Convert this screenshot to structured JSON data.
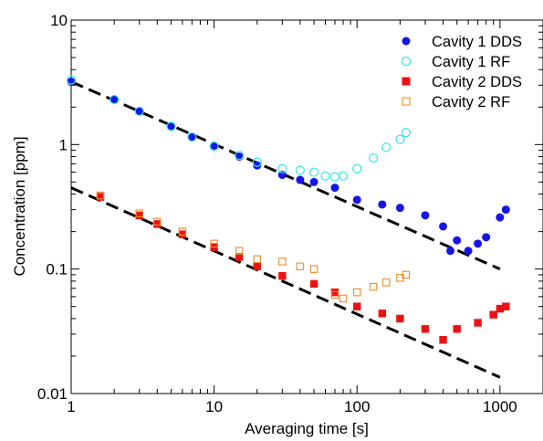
{
  "chart_data": {
    "type": "scatter",
    "title": "",
    "xlabel": "Averaging time [s]",
    "ylabel": "Concentration [ppm]",
    "xscale": "log",
    "yscale": "log",
    "xlim": [
      1,
      2000
    ],
    "ylim": [
      0.01,
      10
    ],
    "x_ticks": [
      1,
      10,
      100,
      1000
    ],
    "x_tick_labels": [
      "1",
      "10",
      "100",
      "1000"
    ],
    "y_ticks": [
      0.01,
      0.1,
      1,
      10
    ],
    "y_tick_labels": [
      "0.01",
      "0.1",
      "1",
      "10"
    ],
    "grid": false,
    "legend_position": "top-right",
    "series": [
      {
        "name": "Cavity 1 DDS",
        "marker": "filled-circle",
        "color": "#1515e6",
        "points": [
          [
            1,
            3.2
          ],
          [
            2,
            2.3
          ],
          [
            3,
            1.85
          ],
          [
            5,
            1.4
          ],
          [
            7,
            1.15
          ],
          [
            10,
            0.98
          ],
          [
            15,
            0.8
          ],
          [
            20,
            0.68
          ],
          [
            30,
            0.57
          ],
          [
            40,
            0.52
          ],
          [
            50,
            0.5
          ],
          [
            70,
            0.45
          ],
          [
            100,
            0.36
          ],
          [
            150,
            0.33
          ],
          [
            200,
            0.31
          ],
          [
            300,
            0.27
          ],
          [
            400,
            0.22
          ],
          [
            450,
            0.14
          ],
          [
            500,
            0.17
          ],
          [
            600,
            0.14
          ],
          [
            700,
            0.16
          ],
          [
            800,
            0.18
          ],
          [
            1000,
            0.26
          ],
          [
            1100,
            0.3
          ]
        ]
      },
      {
        "name": "Cavity 1 RF",
        "marker": "open-circle",
        "color": "#33e6e6",
        "points": [
          [
            1,
            3.3
          ],
          [
            2,
            2.3
          ],
          [
            3,
            1.85
          ],
          [
            5,
            1.4
          ],
          [
            7,
            1.15
          ],
          [
            10,
            0.97
          ],
          [
            15,
            0.82
          ],
          [
            20,
            0.72
          ],
          [
            30,
            0.64
          ],
          [
            40,
            0.62
          ],
          [
            50,
            0.6
          ],
          [
            60,
            0.56
          ],
          [
            70,
            0.55
          ],
          [
            80,
            0.56
          ],
          [
            100,
            0.64
          ],
          [
            130,
            0.78
          ],
          [
            160,
            0.95
          ],
          [
            200,
            1.1
          ],
          [
            220,
            1.25
          ]
        ]
      },
      {
        "name": "Cavity 2 DDS",
        "marker": "filled-square",
        "color": "#ee1111",
        "points": [
          [
            1.6,
            0.38
          ],
          [
            3,
            0.27
          ],
          [
            4,
            0.23
          ],
          [
            6,
            0.19
          ],
          [
            10,
            0.15
          ],
          [
            15,
            0.125
          ],
          [
            20,
            0.105
          ],
          [
            30,
            0.088
          ],
          [
            50,
            0.076
          ],
          [
            70,
            0.065
          ],
          [
            100,
            0.05
          ],
          [
            150,
            0.044
          ],
          [
            200,
            0.04
          ],
          [
            300,
            0.033
          ],
          [
            400,
            0.027
          ],
          [
            500,
            0.033
          ],
          [
            700,
            0.037
          ],
          [
            900,
            0.043
          ],
          [
            1000,
            0.048
          ],
          [
            1100,
            0.05
          ]
        ]
      },
      {
        "name": "Cavity 2 RF",
        "marker": "open-square",
        "color": "#f08a2a",
        "points": [
          [
            1.6,
            0.39
          ],
          [
            3,
            0.28
          ],
          [
            4,
            0.24
          ],
          [
            6,
            0.2
          ],
          [
            10,
            0.16
          ],
          [
            15,
            0.14
          ],
          [
            20,
            0.12
          ],
          [
            30,
            0.115
          ],
          [
            40,
            0.105
          ],
          [
            50,
            0.1
          ],
          [
            70,
            0.062
          ],
          [
            80,
            0.058
          ],
          [
            100,
            0.065
          ],
          [
            130,
            0.072
          ],
          [
            160,
            0.078
          ],
          [
            200,
            0.085
          ],
          [
            220,
            0.09
          ]
        ]
      }
    ],
    "fit_lines": [
      {
        "color": "#000000",
        "style": "dashed",
        "x": [
          1,
          1000
        ],
        "y": [
          3.2,
          0.1
        ]
      },
      {
        "color": "#000000",
        "style": "dashed",
        "x": [
          1,
          1000
        ],
        "y": [
          0.45,
          0.0135
        ]
      }
    ]
  }
}
